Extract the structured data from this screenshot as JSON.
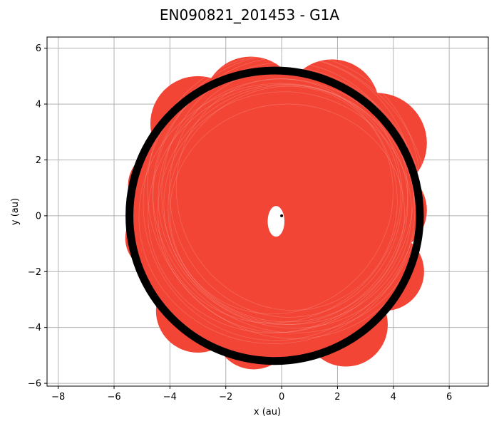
{
  "chart_data": {
    "type": "scatter",
    "title": "EN090821_201453 - G1A",
    "xlabel": "x (au)",
    "ylabel": "y (au)",
    "xlim": [
      -8.4,
      7.4
    ],
    "ylim": [
      -6.1,
      6.4
    ],
    "xticks": [
      -8,
      -6,
      -4,
      -2,
      0,
      2,
      4,
      6
    ],
    "yticks": [
      -6,
      -4,
      -2,
      0,
      2,
      4,
      6
    ],
    "xtick_labels": [
      "−8",
      "−6",
      "−4",
      "−2",
      "0",
      "2",
      "4",
      "6"
    ],
    "ytick_labels": [
      "−6",
      "−4",
      "−2",
      "0",
      "2",
      "4",
      "6"
    ],
    "grid": true,
    "colors": {
      "orbits": "#f24535",
      "planet_orbit": "#000000",
      "grid": "#b0b0b0",
      "star": "#000000"
    },
    "series": [
      {
        "kind": "orbit-cloud",
        "lobes": [
          {
            "cx": -4.3,
            "cy": 1.1,
            "r": 1.2
          },
          {
            "cx": -4.4,
            "cy": -0.8,
            "r": 1.2
          },
          {
            "cx": -3.0,
            "cy": 3.3,
            "r": 1.7
          },
          {
            "cx": -1.1,
            "cy": 4.0,
            "r": 1.7
          },
          {
            "cx": 1.8,
            "cy": 3.9,
            "r": 1.7
          },
          {
            "cx": 3.4,
            "cy": 2.6,
            "r": 1.8
          },
          {
            "cx": 3.7,
            "cy": 0.2,
            "r": 1.5
          },
          {
            "cx": 3.7,
            "cy": -2.0,
            "r": 1.4
          },
          {
            "cx": 2.3,
            "cy": -3.9,
            "r": 1.5
          },
          {
            "cx": -1.0,
            "cy": -4.1,
            "r": 1.4
          },
          {
            "cx": -3.0,
            "cy": -3.4,
            "r": 1.5
          },
          {
            "cx": -0.4,
            "cy": 0.0,
            "r": 5.1
          }
        ],
        "inner_gap": {
          "cx": -0.2,
          "cy": -0.2,
          "rx": 0.3,
          "ry": 0.55
        }
      },
      {
        "kind": "planet-orbit",
        "cx": -0.25,
        "cy": 0.0,
        "rx": 5.2,
        "ry": 5.2,
        "width_au": 0.28
      },
      {
        "kind": "star",
        "x": 0.0,
        "y": 0.0
      }
    ]
  }
}
